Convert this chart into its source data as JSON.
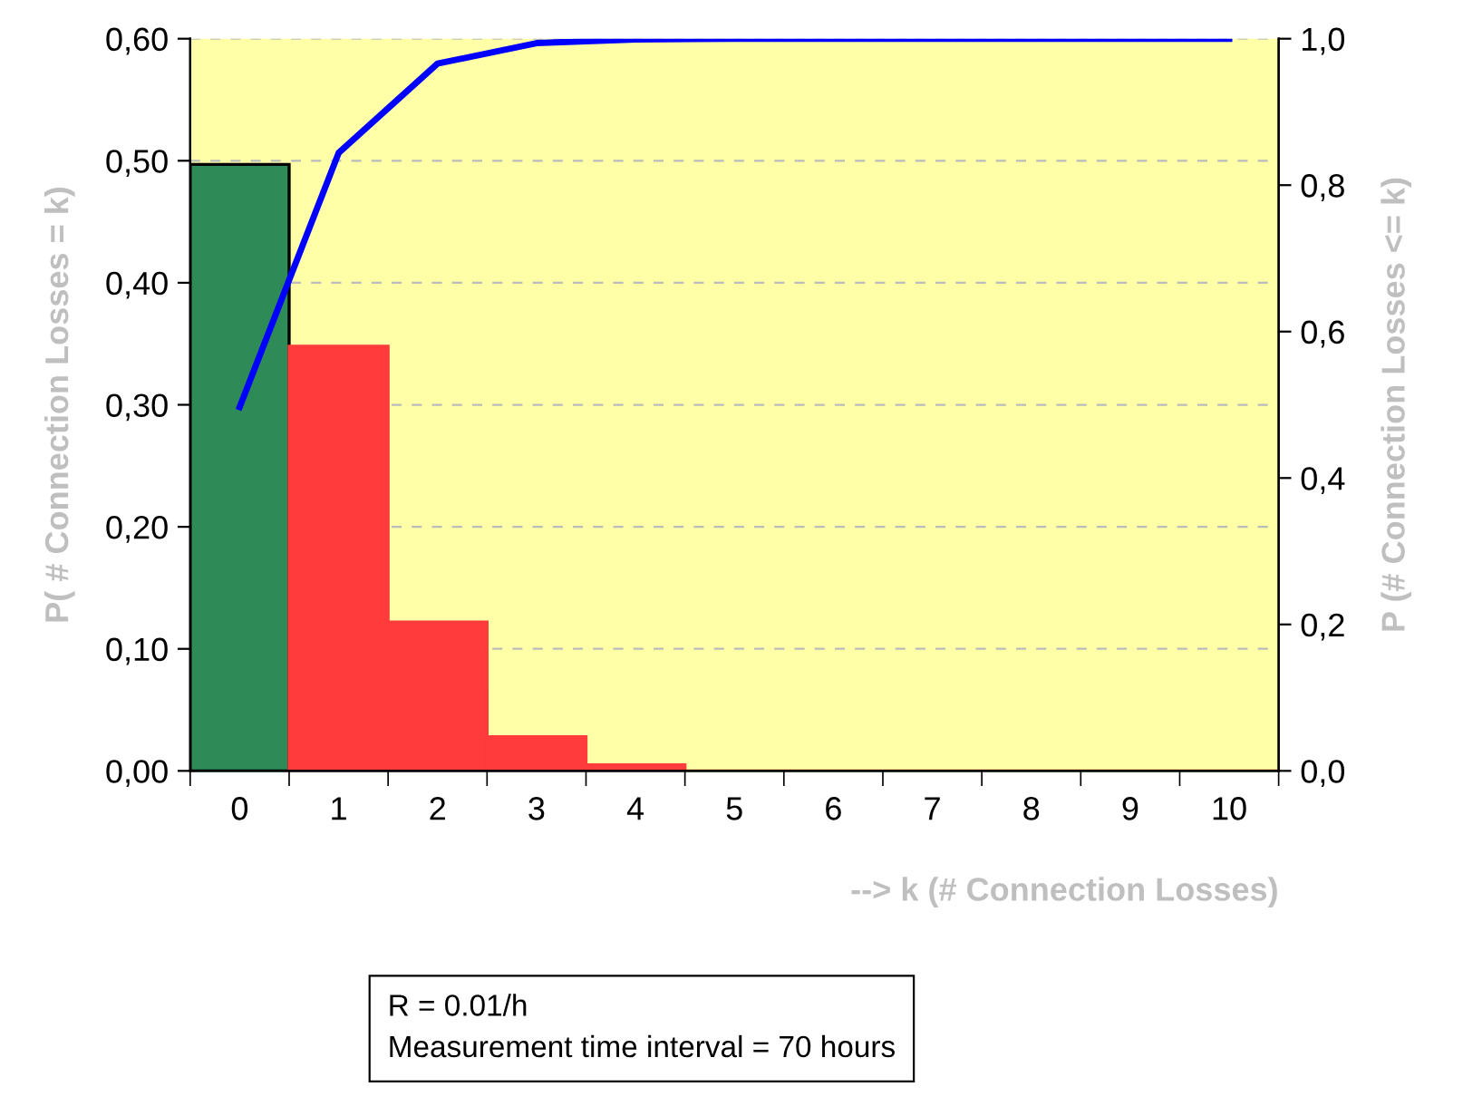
{
  "chart_data": {
    "type": "bar",
    "categories": [
      "0",
      "1",
      "2",
      "3",
      "4",
      "5",
      "6",
      "7",
      "8",
      "9",
      "10"
    ],
    "series": [
      {
        "colors": [
          "#2e8b57",
          "#ff3b3b",
          "#ff3b3b",
          "#ff3b3b",
          "#ff3b3b",
          "#ff3b3b",
          "#ff3b3b",
          "#ff3b3b",
          "#ff3b3b",
          "#ff3b3b",
          "#ff3b3b"
        ],
        "values": [
          0.497,
          0.348,
          0.122,
          0.028,
          0.005,
          0.0,
          0.0,
          0.0,
          0.0,
          0.0,
          0.0
        ]
      },
      {
        "type": "line",
        "axis": "y2",
        "color": "#0000ff",
        "values": [
          0.497,
          0.844,
          0.966,
          0.994,
          0.999,
          1.0,
          1.0,
          1.0,
          1.0,
          1.0,
          1.0
        ]
      }
    ],
    "xlabel": "--> k (# Connection Losses)",
    "ylabel": "P( # Connection Losses = k)",
    "y2label": "P (# Connection Losses <= k)",
    "ylim": [
      0,
      0.6
    ],
    "yticks": [
      {
        "value": 0,
        "label": "0,00"
      },
      {
        "value": 0.1,
        "label": "0,10"
      },
      {
        "value": 0.2,
        "label": "0,20"
      },
      {
        "value": 0.3,
        "label": "0,30"
      },
      {
        "value": 0.4,
        "label": "0,40"
      },
      {
        "value": 0.5,
        "label": "0,50"
      },
      {
        "value": 0.6,
        "label": "0,60"
      }
    ],
    "y2lim": [
      0,
      1
    ],
    "y2ticks": [
      {
        "value": 0,
        "label": "0,0"
      },
      {
        "value": 0.2,
        "label": "0,2"
      },
      {
        "value": 0.4,
        "label": "0,4"
      },
      {
        "value": 0.6,
        "label": "0,6"
      },
      {
        "value": 0.8,
        "label": "0,8"
      },
      {
        "value": 1.0,
        "label": "1,0"
      }
    ],
    "grid": "y",
    "annotations": [
      "R = 0.01/h\nMeasurement time interval = 70 hours"
    ]
  }
}
